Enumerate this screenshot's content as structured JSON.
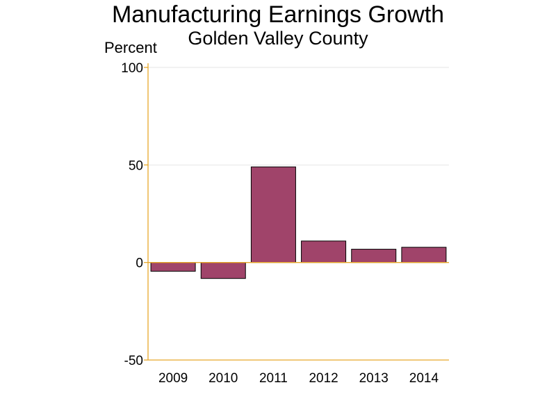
{
  "chart_data": {
    "type": "bar",
    "title": "Manufacturing Earnings Growth",
    "subtitle": "Golden Valley County",
    "ylabel": "Percent",
    "xlabel": "",
    "categories": [
      "2009",
      "2010",
      "2011",
      "2012",
      "2013",
      "2014"
    ],
    "values": [
      -4.5,
      -8.2,
      49.0,
      11.0,
      6.8,
      7.8
    ],
    "ylim": [
      -50,
      100
    ],
    "yticks": [
      100,
      50,
      0,
      -50
    ],
    "ytick_labels": [
      "100",
      "50",
      "0",
      "-50"
    ],
    "grid": true,
    "legend": "none",
    "colors": {
      "bar_fill": "#A0446A",
      "bar_stroke": "#000000",
      "axis": "#E8A82A",
      "grid": "#E6E6E6"
    }
  }
}
